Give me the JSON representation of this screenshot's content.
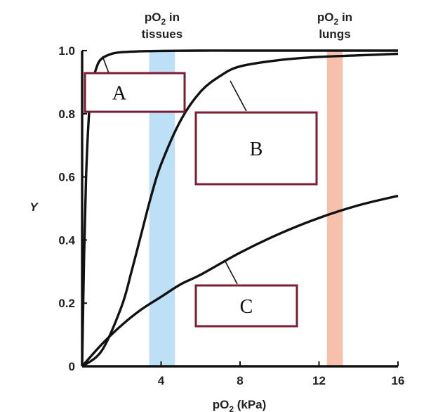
{
  "chart_data": {
    "type": "line",
    "xlabel_main": "pO",
    "xlabel_sub": "2",
    "xlabel_rest": " (kPa)",
    "ylabel": "Y",
    "xlim": [
      0,
      16
    ],
    "ylim": [
      0,
      1.0
    ],
    "x_ticks": [
      {
        "value": 4,
        "label": "4"
      },
      {
        "value": 8,
        "label": "8"
      },
      {
        "value": 12,
        "label": "12"
      },
      {
        "value": 16,
        "label": "16"
      }
    ],
    "y_ticks": [
      {
        "value": 0,
        "label": "0"
      },
      {
        "value": 0.2,
        "label": "0.2"
      },
      {
        "value": 0.4,
        "label": "0.4"
      },
      {
        "value": 0.6,
        "label": "0.6"
      },
      {
        "value": 0.8,
        "label": "0.8"
      },
      {
        "value": 1.0,
        "label": "1.0"
      }
    ],
    "bands": [
      {
        "name": "tissues",
        "line1_main": "pO",
        "line1_sub": "2",
        "line1_rest": " in",
        "line2": "tissues",
        "x_range": [
          3.4,
          4.7
        ],
        "color": "#bde0f7"
      },
      {
        "name": "lungs",
        "line1_main": "pO",
        "line1_sub": "2",
        "line1_rest": " in",
        "line2": "lungs",
        "x_range": [
          12.4,
          13.2
        ],
        "color": "#f6c0ac"
      }
    ],
    "series": [
      {
        "label": "A",
        "x": [
          0,
          0.1,
          0.2,
          0.35,
          0.5,
          0.75,
          1.0,
          1.5,
          2,
          3,
          4,
          6,
          8,
          12,
          16
        ],
        "y": [
          0,
          0.35,
          0.6,
          0.8,
          0.89,
          0.95,
          0.975,
          0.99,
          0.995,
          0.998,
          0.999,
          1.0,
          1.0,
          1.0,
          1.0
        ]
      },
      {
        "label": "B",
        "x": [
          0,
          1,
          2,
          2.5,
          3,
          3.5,
          4,
          5,
          6,
          7,
          8,
          10,
          12,
          14,
          16
        ],
        "y": [
          0,
          0.05,
          0.19,
          0.3,
          0.42,
          0.54,
          0.64,
          0.78,
          0.87,
          0.92,
          0.95,
          0.97,
          0.98,
          0.985,
          0.99
        ]
      },
      {
        "label": "C",
        "x": [
          0,
          1,
          2,
          3,
          4,
          5,
          6,
          8,
          10,
          12,
          14,
          16
        ],
        "y": [
          0,
          0.07,
          0.13,
          0.18,
          0.22,
          0.26,
          0.29,
          0.36,
          0.42,
          0.47,
          0.51,
          0.54
        ]
      }
    ],
    "label_boxes": [
      {
        "text": "A"
      },
      {
        "text": "B"
      },
      {
        "text": "C"
      }
    ]
  }
}
